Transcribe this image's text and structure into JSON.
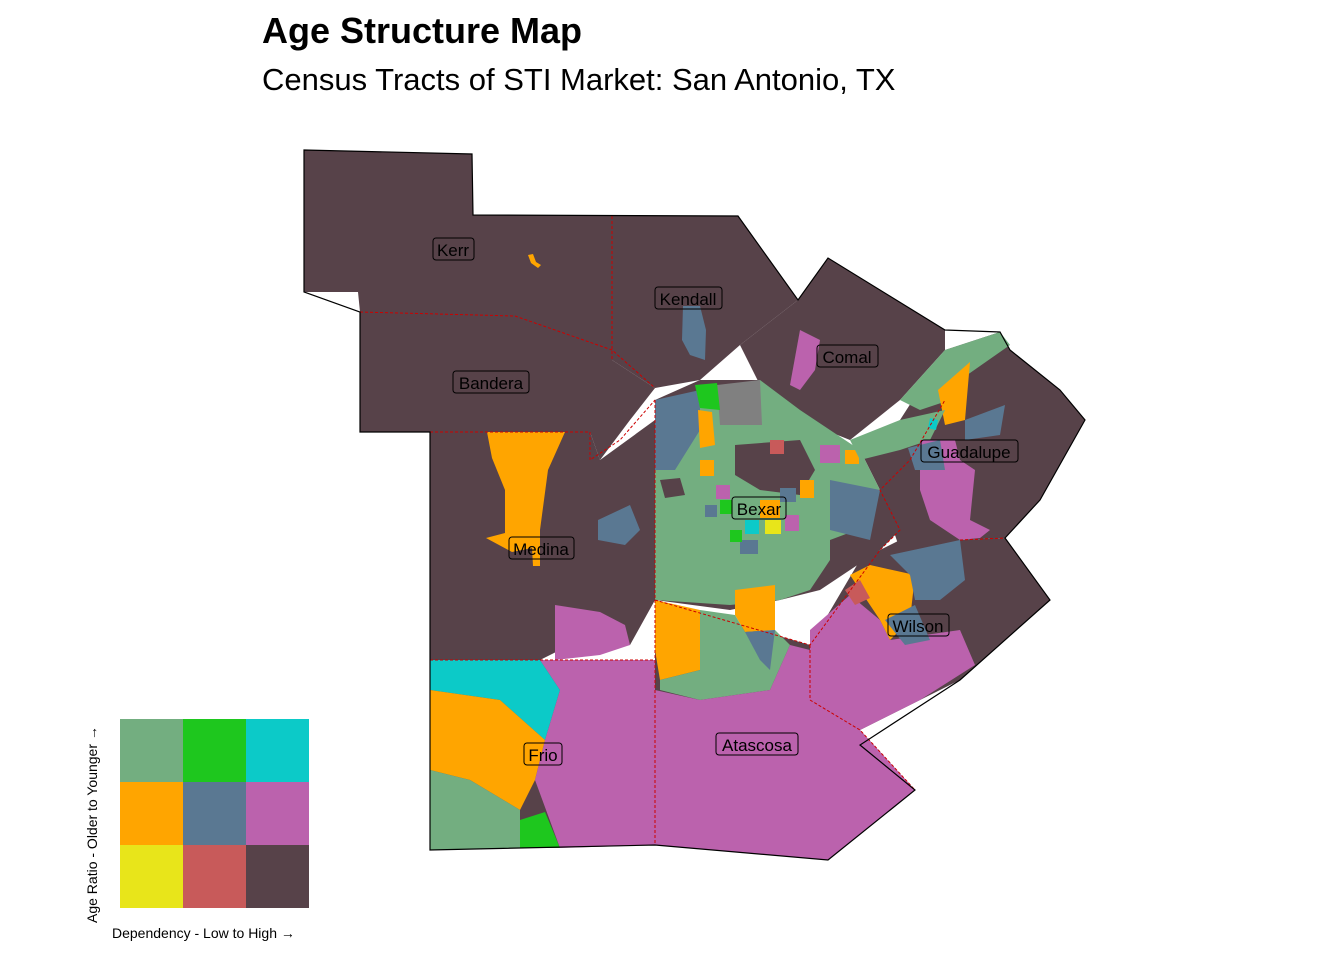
{
  "title": "Age Structure Map",
  "subtitle": "Census Tracts of STI Market: San Antonio, TX",
  "palette": {
    "green_mid": "#73ae80",
    "green_bright": "#1ec71e",
    "cyan": "#0ccac8",
    "orange": "#ffa500",
    "slate": "#5a7892",
    "magenta": "#bb62ad",
    "yellow": "#e8e51a",
    "red": "#c85a5a",
    "dark": "#574249",
    "grey": "#808080",
    "border": "#cc0000"
  },
  "counties": [
    {
      "name": "Kerr"
    },
    {
      "name": "Kendall"
    },
    {
      "name": "Comal"
    },
    {
      "name": "Bandera"
    },
    {
      "name": "Guadalupe"
    },
    {
      "name": "Bexar"
    },
    {
      "name": "Medina"
    },
    {
      "name": "Wilson"
    },
    {
      "name": "Frio"
    },
    {
      "name": "Atascosa"
    }
  ],
  "legend": {
    "y_label": "Age Ratio - Older to Younger →",
    "x_label": "Dependency - Low to High →",
    "grid": [
      [
        "#73ae80",
        "#1ec71e",
        "#0ccac8"
      ],
      [
        "#ffa500",
        "#5a7892",
        "#bb62ad"
      ],
      [
        "#e8e51a",
        "#c85a5a",
        "#574249"
      ]
    ]
  }
}
